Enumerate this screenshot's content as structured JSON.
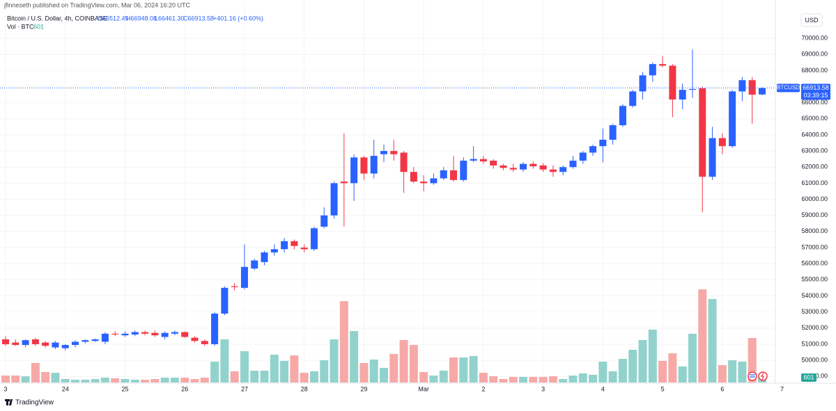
{
  "chart_data": {
    "type": "candlestick",
    "publisher": "jfinneseth published on TradingView.com, Mar 06, 2024 16:20 UTC",
    "title": "Bitcoin / U.S. Dollar, 4h, COINBASE",
    "ohlc_labels": [
      "O66512.45",
      "H66948.08",
      "L66461.30",
      "C66913.58"
    ],
    "change_label": "+401.16 (+0.60%)",
    "volume_title": "Vol · BTC",
    "currency": "USD",
    "ticker": "BTCUSD",
    "countdown": "03:39:15",
    "brand": "TradingView",
    "up_color": "#2962ff",
    "down_color": "#f23645",
    "vol_up_color": "#92d2cc",
    "vol_down_color": "#f7a9a7",
    "open": [
      51300,
      51100,
      50950,
      51300,
      51100,
      50800,
      50750,
      50950,
      51150,
      51200,
      51150,
      51650,
      51550,
      51600,
      51750,
      51700,
      51450,
      51650,
      51750,
      51400,
      51200,
      51000,
      52900,
      54600,
      54500,
      55700,
      56100,
      56700,
      56900,
      57400,
      57000,
      56900,
      58300,
      59000,
      61100,
      61000,
      62600,
      61600,
      62800,
      63000,
      62900,
      61700,
      61100,
      61000,
      61300,
      61800,
      61200,
      62400,
      62500,
      62400,
      62100,
      61950,
      61850,
      62200,
      62100,
      61850,
      61700,
      62000,
      62400,
      62900,
      63300,
      63700,
      64600,
      65800,
      66700,
      67700,
      68400,
      68300,
      66200,
      66800,
      66900,
      61400,
      63800,
      63300,
      66700,
      67400,
      66512.45
    ],
    "high": [
      51500,
      51300,
      51300,
      51400,
      51200,
      51200,
      51000,
      51250,
      51300,
      51350,
      51750,
      51800,
      51800,
      51850,
      51850,
      51850,
      51800,
      51850,
      51800,
      51500,
      51300,
      53000,
      54600,
      54800,
      57200,
      56300,
      56800,
      57200,
      57600,
      57500,
      57200,
      58300,
      59500,
      61100,
      64100,
      62800,
      62700,
      63700,
      63400,
      63700,
      63000,
      62000,
      61500,
      61600,
      62000,
      62700,
      62600,
      63300,
      62700,
      62500,
      62200,
      62200,
      62300,
      62350,
      62250,
      62100,
      62100,
      62700,
      63000,
      63400,
      64400,
      64700,
      65900,
      66800,
      67900,
      68500,
      68900,
      68400,
      67200,
      69300,
      67000,
      64500,
      64100,
      66800,
      67600,
      67600,
      66948.08
    ],
    "low": [
      50900,
      50900,
      50800,
      50900,
      50800,
      50700,
      50600,
      50800,
      51050,
      51150,
      51000,
      51500,
      51450,
      51500,
      51550,
      51450,
      51300,
      51550,
      51400,
      51100,
      50900,
      50900,
      52800,
      54350,
      54400,
      55600,
      55900,
      56500,
      56700,
      56900,
      56700,
      56800,
      58200,
      58800,
      58300,
      59900,
      61200,
      61300,
      62300,
      62400,
      60400,
      61000,
      60500,
      60900,
      61200,
      61100,
      61100,
      62300,
      62200,
      61900,
      61800,
      61700,
      61700,
      61900,
      61700,
      61400,
      61500,
      61900,
      62200,
      62700,
      62300,
      63400,
      64500,
      65700,
      66200,
      67300,
      68200,
      65100,
      65600,
      66300,
      59200,
      61200,
      62800,
      63200,
      66100,
      64700,
      66461.3
    ],
    "close": [
      51000,
      50950,
      51250,
      51000,
      50900,
      51100,
      50950,
      51150,
      51250,
      51300,
      51650,
      51600,
      51650,
      51750,
      51650,
      51550,
      51700,
      51750,
      51450,
      51200,
      51000,
      52900,
      54500,
      54550,
      55800,
      56200,
      56700,
      56900,
      57400,
      57100,
      56900,
      58200,
      59000,
      61000,
      61000,
      62600,
      61600,
      62700,
      63000,
      62800,
      61700,
      61100,
      61000,
      61300,
      61800,
      61200,
      62400,
      62500,
      62350,
      62100,
      61950,
      61850,
      62200,
      62050,
      61850,
      61700,
      62000,
      62400,
      62900,
      63300,
      63700,
      64600,
      65800,
      66700,
      67700,
      68400,
      68300,
      66200,
      66800,
      66850,
      61400,
      63800,
      63300,
      66700,
      67400,
      66500,
      66913.58
    ],
    "volume": [
      860,
      860,
      770,
      2410,
      1290,
      1200,
      430,
      340,
      340,
      430,
      600,
      520,
      430,
      340,
      340,
      430,
      600,
      600,
      600,
      430,
      600,
      2580,
      5330,
      1380,
      3870,
      1460,
      1460,
      3440,
      2670,
      3350,
      1200,
      1380,
      2750,
      5330,
      10060,
      6360,
      2410,
      2840,
      1810,
      3530,
      5250,
      4640,
      1290,
      860,
      1460,
      3100,
      3100,
      3270,
      1200,
      770,
      430,
      690,
      690,
      690,
      690,
      770,
      430,
      860,
      1120,
      950,
      2580,
      1380,
      2920,
      4040,
      5250,
      6540,
      2670,
      3610,
      1980,
      6020,
      11520,
      10320,
      2150,
      2750,
      2580,
      5500,
      601
    ],
    "xlim": [
      -0.56,
      77.47
    ],
    "xticks": [
      {
        "value": 0,
        "label": "3"
      },
      {
        "value": 6,
        "label": "24"
      },
      {
        "value": 12,
        "label": "25"
      },
      {
        "value": 18,
        "label": "26"
      },
      {
        "value": 24,
        "label": "27"
      },
      {
        "value": 30,
        "label": "28"
      },
      {
        "value": 36,
        "label": "29"
      },
      {
        "value": 42,
        "label": "Mar"
      },
      {
        "value": 48,
        "label": "2"
      },
      {
        "value": 54,
        "label": "3"
      },
      {
        "value": 60,
        "label": "4"
      },
      {
        "value": 66,
        "label": "5"
      },
      {
        "value": 72,
        "label": "6"
      },
      {
        "value": 78,
        "label": "7"
      }
    ],
    "ylim": [
      48620,
      72380
    ],
    "yticks": [
      {
        "value": 49000,
        "label": "49000.00"
      },
      {
        "value": 50000,
        "label": "50000.00"
      },
      {
        "value": 51000,
        "label": "51000.00"
      },
      {
        "value": 52000,
        "label": "52000.00"
      },
      {
        "value": 53000,
        "label": "53000.00"
      },
      {
        "value": 54000,
        "label": "54000.00"
      },
      {
        "value": 55000,
        "label": "55000.00"
      },
      {
        "value": 56000,
        "label": "56000.00"
      },
      {
        "value": 57000,
        "label": "57000.00"
      },
      {
        "value": 58000,
        "label": "58000.00"
      },
      {
        "value": 59000,
        "label": "59000.00"
      },
      {
        "value": 60000,
        "label": "60000.00"
      },
      {
        "value": 61000,
        "label": "61000.00"
      },
      {
        "value": 62000,
        "label": "62000.00"
      },
      {
        "value": 63000,
        "label": "63000.00"
      },
      {
        "value": 64000,
        "label": "64000.00"
      },
      {
        "value": 65000,
        "label": "65000.00"
      },
      {
        "value": 66000,
        "label": "66000.00"
      },
      {
        "value": 67000,
        "label": "67000.00"
      },
      {
        "value": 68000,
        "label": "68000.00"
      },
      {
        "value": 69000,
        "label": "69000.00"
      },
      {
        "value": 70000,
        "label": "70000.00"
      }
    ],
    "vol_lim": [
      0,
      47300
    ],
    "grid": true
  }
}
